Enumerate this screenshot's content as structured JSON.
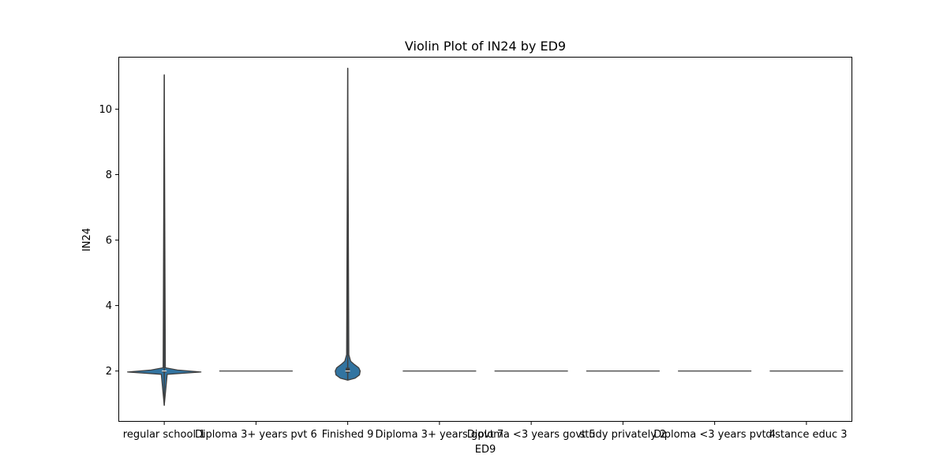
{
  "chart_data": {
    "type": "violin",
    "title": "Violin Plot of IN24 by ED9",
    "xlabel": "ED9",
    "ylabel": "IN24",
    "ylim": [
      0.45,
      11.6
    ],
    "yticks": [
      2,
      4,
      6,
      8,
      10
    ],
    "categories": [
      "regular school 1",
      "Diploma 3+ years pvt 6",
      "Finished 9",
      "Diploma 3+ years govt 7",
      "Diploma <3 years govt 5",
      "study privately 2",
      "Diploma <3 years pvt 4",
      "distance educ 3"
    ],
    "series": [
      {
        "category": "regular school 1",
        "min": 0.95,
        "max": 11.05,
        "q1": 2.0,
        "median": 2.0,
        "q3": 2.0,
        "density": [
          [
            0.95,
            0.0
          ],
          [
            1.9,
            0.08
          ],
          [
            1.97,
            1.0
          ],
          [
            2.03,
            0.36
          ],
          [
            2.1,
            0.03
          ],
          [
            11.05,
            0.0
          ]
        ]
      },
      {
        "category": "Diploma 3+ years pvt 6",
        "min": 2.0,
        "max": 2.0,
        "q1": 2.0,
        "median": 2.0,
        "q3": 2.0,
        "density": []
      },
      {
        "category": "Finished 9",
        "min": 1.72,
        "max": 11.25,
        "q1": 1.95,
        "median": 2.0,
        "q3": 2.1,
        "density": [
          [
            1.72,
            0.0
          ],
          [
            1.78,
            0.2
          ],
          [
            1.88,
            0.32
          ],
          [
            2.0,
            0.34
          ],
          [
            2.1,
            0.3
          ],
          [
            2.2,
            0.18
          ],
          [
            2.3,
            0.08
          ],
          [
            2.5,
            0.03
          ],
          [
            11.25,
            0.0
          ]
        ]
      },
      {
        "category": "Diploma 3+ years govt 7",
        "min": 2.0,
        "max": 2.0,
        "q1": 2.0,
        "median": 2.0,
        "q3": 2.0,
        "density": []
      },
      {
        "category": "Diploma <3 years govt 5",
        "min": 2.0,
        "max": 2.0,
        "q1": 2.0,
        "median": 2.0,
        "q3": 2.0,
        "density": []
      },
      {
        "category": "study privately 2",
        "min": 2.0,
        "max": 2.0,
        "q1": 2.0,
        "median": 2.0,
        "q3": 2.0,
        "density": []
      },
      {
        "category": "Diploma <3 years pvt 4",
        "min": 2.0,
        "max": 2.0,
        "q1": 2.0,
        "median": 2.0,
        "q3": 2.0,
        "density": []
      },
      {
        "category": "distance educ 3",
        "min": 2.0,
        "max": 2.0,
        "q1": 2.0,
        "median": 2.0,
        "q3": 2.0,
        "density": []
      }
    ],
    "colors": {
      "violin": "#3274a1",
      "edge": "#3f3f3f",
      "axes": "#000000"
    },
    "grid": false,
    "legend": "none"
  }
}
